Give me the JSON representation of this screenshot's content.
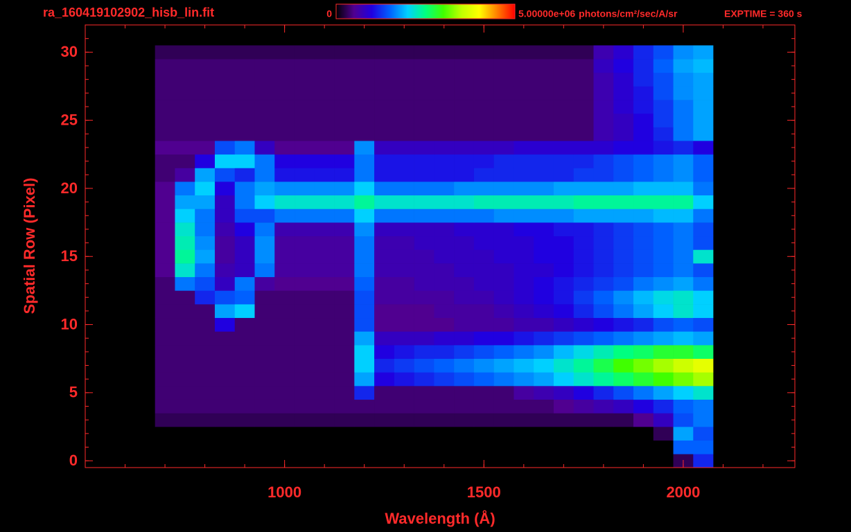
{
  "chart_data": {
    "type": "heatmap",
    "title": "ra_160419102902_hisb_lin.fit",
    "annotation": "EXPTIME = 360 s",
    "xlabel": "Wavelength (Å)",
    "ylabel": "Spatial Row (Pixel)",
    "xlim": [
      500,
      2280
    ],
    "ylim": [
      -0.5,
      32
    ],
    "xticks": [
      1000,
      1500,
      2000
    ],
    "yticks": [
      0,
      5,
      10,
      15,
      20,
      25,
      30
    ],
    "xminor": [
      600,
      700,
      800,
      900,
      1000,
      1100,
      1200,
      1300,
      1400,
      1500,
      1600,
      1700,
      1800,
      1900,
      2000,
      2100,
      2200
    ],
    "yminor": [
      0,
      1,
      2,
      3,
      4,
      5,
      6,
      7,
      8,
      9,
      10,
      11,
      12,
      13,
      14,
      15,
      16,
      17,
      18,
      19,
      20,
      21,
      22,
      23,
      24,
      25,
      26,
      27,
      28,
      29,
      30,
      31,
      32
    ],
    "axis_color": "#ff2a2a",
    "colorbar_ticks": [
      0,
      {
        "value": 5000000,
        "label": "5.00000e+06"
      }
    ],
    "colorbar_unit": "photons/cm²/sec/A/sr",
    "zlim": [
      0,
      5000000
    ],
    "colormap": [
      "#000000",
      "#500090",
      "#2000e0",
      "#0060ff",
      "#00d0ff",
      "#00ff80",
      "#40ff00",
      "#c0ff00",
      "#ffff00",
      "#ff8000",
      "#ff0000"
    ],
    "xbins": [
      675,
      725,
      775,
      825,
      875,
      925,
      975,
      1025,
      1075,
      1125,
      1175,
      1225,
      1275,
      1325,
      1375,
      1425,
      1475,
      1525,
      1575,
      1625,
      1675,
      1725,
      1775,
      1825,
      1875,
      1925,
      1975,
      2025,
      2075
    ],
    "y": [
      0,
      1,
      2,
      3,
      4,
      5,
      6,
      7,
      8,
      9,
      10,
      11,
      12,
      13,
      14,
      15,
      16,
      17,
      18,
      19,
      20,
      21,
      22,
      23,
      24,
      25,
      26,
      27,
      28,
      29,
      30
    ],
    "z": [
      [
        0,
        0,
        0,
        0,
        0,
        0,
        0,
        0,
        0,
        0,
        0,
        0,
        0,
        0,
        0,
        0,
        0,
        0,
        0,
        0,
        0,
        0,
        0,
        0,
        0,
        0,
        300000.0,
        1200000.0
      ],
      [
        0,
        0,
        0,
        0,
        0,
        0,
        0,
        0,
        0,
        0,
        0,
        0,
        0,
        0,
        0,
        0,
        0,
        0,
        0,
        0,
        0,
        0,
        0,
        0,
        0,
        0,
        1500000.0,
        1500000.0
      ],
      [
        0,
        0,
        0,
        0,
        0,
        0,
        0,
        0,
        0,
        0,
        0,
        0,
        0,
        0,
        0,
        0,
        0,
        0,
        0,
        0,
        0,
        0,
        0,
        0,
        0,
        300000.0,
        1800000.0,
        1400000.0
      ],
      [
        300000.0,
        300000.0,
        300000.0,
        300000.0,
        300000.0,
        300000.0,
        300000.0,
        300000.0,
        300000.0,
        300000.0,
        300000.0,
        300000.0,
        300000.0,
        300000.0,
        300000.0,
        300000.0,
        300000.0,
        300000.0,
        300000.0,
        300000.0,
        300000.0,
        300000.0,
        300000.0,
        300000.0,
        500000.0,
        800000.0,
        1400000.0,
        1600000.0
      ],
      [
        400000.0,
        400000.0,
        400000.0,
        400000.0,
        400000.0,
        400000.0,
        400000.0,
        400000.0,
        400000.0,
        400000.0,
        400000.0,
        400000.0,
        400000.0,
        400000.0,
        400000.0,
        400000.0,
        400000.0,
        400000.0,
        400000.0,
        400000.0,
        500000.0,
        600000.0,
        700000.0,
        800000.0,
        1000000.0,
        1200000.0,
        1500000.0,
        1600000.0
      ],
      [
        400000.0,
        400000.0,
        400000.0,
        400000.0,
        400000.0,
        400000.0,
        400000.0,
        400000.0,
        400000.0,
        400000.0,
        1200000.0,
        400000.0,
        400000.0,
        400000.0,
        400000.0,
        400000.0,
        400000.0,
        400000.0,
        600000.0,
        700000.0,
        800000.0,
        1000000.0,
        1200000.0,
        1400000.0,
        1600000.0,
        1800000.0,
        2000000.0,
        2200000.0
      ],
      [
        400000.0,
        400000.0,
        400000.0,
        400000.0,
        400000.0,
        400000.0,
        400000.0,
        400000.0,
        400000.0,
        400000.0,
        1800000.0,
        1000000.0,
        1100000.0,
        1200000.0,
        1300000.0,
        1400000.0,
        1500000.0,
        1600000.0,
        1700000.0,
        1800000.0,
        2000000.0,
        2200000.0,
        2400000.0,
        2600000.0,
        2800000.0,
        3000000.0,
        3200000.0,
        3400000.0
      ],
      [
        400000.0,
        400000.0,
        400000.0,
        400000.0,
        400000.0,
        400000.0,
        400000.0,
        400000.0,
        400000.0,
        400000.0,
        2000000.0,
        1200000.0,
        1300000.0,
        1400000.0,
        1500000.0,
        1600000.0,
        1700000.0,
        1800000.0,
        1900000.0,
        2000000.0,
        2200000.0,
        2400000.0,
        2700000.0,
        3000000.0,
        3200000.0,
        3400000.0,
        3600000.0,
        3800000.0
      ],
      [
        400000.0,
        400000.0,
        400000.0,
        400000.0,
        400000.0,
        400000.0,
        400000.0,
        400000.0,
        400000.0,
        400000.0,
        2000000.0,
        1000000.0,
        1100000.0,
        1200000.0,
        1200000.0,
        1300000.0,
        1400000.0,
        1500000.0,
        1600000.0,
        1700000.0,
        1900000.0,
        2100000.0,
        2300000.0,
        2500000.0,
        2600000.0,
        2800000.0,
        2800000.0,
        2600000.0
      ],
      [
        400000.0,
        400000.0,
        400000.0,
        400000.0,
        400000.0,
        400000.0,
        400000.0,
        400000.0,
        400000.0,
        400000.0,
        1800000.0,
        800000.0,
        800000.0,
        800000.0,
        900000.0,
        900000.0,
        1000000.0,
        1000000.0,
        1100000.0,
        1200000.0,
        1300000.0,
        1400000.0,
        1500000.0,
        1600000.0,
        1700000.0,
        1800000.0,
        1900000.0,
        1800000.0
      ],
      [
        400000.0,
        400000.0,
        400000.0,
        1000000.0,
        400000.0,
        400000.0,
        400000.0,
        400000.0,
        400000.0,
        400000.0,
        1400000.0,
        500000.0,
        500000.0,
        500000.0,
        500000.0,
        600000.0,
        600000.0,
        600000.0,
        700000.0,
        700000.0,
        800000.0,
        900000.0,
        1000000.0,
        1100000.0,
        1200000.0,
        1400000.0,
        1500000.0,
        1400000.0
      ],
      [
        400000.0,
        400000.0,
        400000.0,
        1800000.0,
        2000000.0,
        400000.0,
        400000.0,
        400000.0,
        400000.0,
        400000.0,
        1400000.0,
        500000.0,
        500000.0,
        500000.0,
        600000.0,
        600000.0,
        600000.0,
        700000.0,
        800000.0,
        900000.0,
        1000000.0,
        1200000.0,
        1400000.0,
        1600000.0,
        1800000.0,
        2000000.0,
        2200000.0,
        2000000.0
      ],
      [
        400000.0,
        400000.0,
        1200000.0,
        1400000.0,
        1500000.0,
        400000.0,
        400000.0,
        400000.0,
        400000.0,
        400000.0,
        1400000.0,
        600000.0,
        600000.0,
        600000.0,
        600000.0,
        700000.0,
        700000.0,
        800000.0,
        900000.0,
        1000000.0,
        1100000.0,
        1300000.0,
        1500000.0,
        1700000.0,
        1900000.0,
        2100000.0,
        2200000.0,
        2000000.0
      ],
      [
        400000.0,
        1600000.0,
        1400000.0,
        800000.0,
        1600000.0,
        600000.0,
        500000.0,
        500000.0,
        500000.0,
        500000.0,
        1500000.0,
        600000.0,
        600000.0,
        700000.0,
        700000.0,
        700000.0,
        800000.0,
        800000.0,
        900000.0,
        1000000.0,
        1100000.0,
        1200000.0,
        1300000.0,
        1400000.0,
        1600000.0,
        1700000.0,
        1800000.0,
        1600000.0
      ],
      [
        500000.0,
        2200000.0,
        1600000.0,
        700000.0,
        800000.0,
        1600000.0,
        600000.0,
        600000.0,
        600000.0,
        600000.0,
        1600000.0,
        700000.0,
        700000.0,
        700000.0,
        700000.0,
        800000.0,
        800000.0,
        800000.0,
        900000.0,
        900000.0,
        1000000.0,
        1100000.0,
        1200000.0,
        1300000.0,
        1400000.0,
        1500000.0,
        1600000.0,
        1400000.0
      ],
      [
        500000.0,
        2400000.0,
        1800000.0,
        600000.0,
        800000.0,
        1700000.0,
        600000.0,
        600000.0,
        600000.0,
        600000.0,
        1600000.0,
        700000.0,
        700000.0,
        700000.0,
        800000.0,
        800000.0,
        800000.0,
        900000.0,
        900000.0,
        1000000.0,
        1000000.0,
        1100000.0,
        1200000.0,
        1300000.0,
        1400000.0,
        1500000.0,
        1600000.0,
        2200000.0
      ],
      [
        500000.0,
        2300000.0,
        1700000.0,
        600000.0,
        800000.0,
        1700000.0,
        600000.0,
        600000.0,
        600000.0,
        600000.0,
        1600000.0,
        700000.0,
        700000.0,
        800000.0,
        800000.0,
        800000.0,
        900000.0,
        900000.0,
        900000.0,
        1000000.0,
        1000000.0,
        1100000.0,
        1200000.0,
        1300000.0,
        1400000.0,
        1500000.0,
        1600000.0,
        1400000.0
      ],
      [
        500000.0,
        2200000.0,
        1600000.0,
        700000.0,
        1000000.0,
        1600000.0,
        700000.0,
        700000.0,
        700000.0,
        700000.0,
        1700000.0,
        800000.0,
        800000.0,
        800000.0,
        800000.0,
        900000.0,
        900000.0,
        900000.0,
        1000000.0,
        1000000.0,
        1100000.0,
        1100000.0,
        1200000.0,
        1300000.0,
        1400000.0,
        1500000.0,
        1600000.0,
        1400000.0
      ],
      [
        500000.0,
        2000000.0,
        1600000.0,
        800000.0,
        1400000.0,
        1400000.0,
        1600000.0,
        1600000.0,
        1600000.0,
        1600000.0,
        2000000.0,
        1600000.0,
        1600000.0,
        1600000.0,
        1600000.0,
        1600000.0,
        1600000.0,
        1700000.0,
        1700000.0,
        1700000.0,
        1700000.0,
        1800000.0,
        1800000.0,
        1800000.0,
        1800000.0,
        1900000.0,
        1900000.0,
        1600000.0
      ],
      [
        500000.0,
        1800000.0,
        1800000.0,
        800000.0,
        1600000.0,
        2000000.0,
        2200000.0,
        2200000.0,
        2200000.0,
        2200000.0,
        2400000.0,
        2200000.0,
        2200000.0,
        2200000.0,
        2200000.0,
        2200000.0,
        2300000.0,
        2300000.0,
        2300000.0,
        2300000.0,
        2300000.0,
        2400000.0,
        2400000.0,
        2400000.0,
        2400000.0,
        2400000.0,
        2400000.0,
        2000000.0
      ],
      [
        500000.0,
        1600000.0,
        2000000.0,
        1000000.0,
        1600000.0,
        1800000.0,
        1700000.0,
        1700000.0,
        1700000.0,
        1700000.0,
        2000000.0,
        1600000.0,
        1600000.0,
        1600000.0,
        1600000.0,
        1700000.0,
        1700000.0,
        1700000.0,
        1700000.0,
        1700000.0,
        1800000.0,
        1800000.0,
        1800000.0,
        1800000.0,
        1900000.0,
        1900000.0,
        1900000.0,
        1600000.0
      ],
      [
        400000.0,
        600000.0,
        1800000.0,
        1400000.0,
        1200000.0,
        1600000.0,
        1100000.0,
        1100000.0,
        1100000.0,
        1100000.0,
        1600000.0,
        1100000.0,
        1100000.0,
        1100000.0,
        1100000.0,
        1100000.0,
        1200000.0,
        1200000.0,
        1200000.0,
        1200000.0,
        1200000.0,
        1300000.0,
        1300000.0,
        1400000.0,
        1500000.0,
        1600000.0,
        1700000.0,
        1500000.0
      ],
      [
        400000.0,
        400000.0,
        1000000.0,
        2000000.0,
        2000000.0,
        1600000.0,
        1000000.0,
        1000000.0,
        1000000.0,
        1000000.0,
        1600000.0,
        1100000.0,
        1100000.0,
        1100000.0,
        1100000.0,
        1100000.0,
        1100000.0,
        1200000.0,
        1200000.0,
        1200000.0,
        1200000.0,
        1200000.0,
        1300000.0,
        1400000.0,
        1500000.0,
        1600000.0,
        1700000.0,
        1500000.0
      ],
      [
        500000.0,
        500000.0,
        500000.0,
        1400000.0,
        1600000.0,
        800000.0,
        500000.0,
        500000.0,
        500000.0,
        500000.0,
        1700000.0,
        800000.0,
        800000.0,
        800000.0,
        800000.0,
        800000.0,
        800000.0,
        800000.0,
        900000.0,
        900000.0,
        900000.0,
        900000.0,
        900000.0,
        1000000.0,
        1000000.0,
        1100000.0,
        1200000.0,
        1000000.0
      ],
      [
        400000.0,
        400000.0,
        400000.0,
        400000.0,
        400000.0,
        400000.0,
        400000.0,
        400000.0,
        400000.0,
        400000.0,
        400000.0,
        400000.0,
        400000.0,
        400000.0,
        400000.0,
        400000.0,
        400000.0,
        400000.0,
        400000.0,
        400000.0,
        400000.0,
        400000.0,
        700000.0,
        800000.0,
        1000000.0,
        1200000.0,
        1600000.0,
        1800000.0
      ],
      [
        400000.0,
        400000.0,
        400000.0,
        400000.0,
        400000.0,
        400000.0,
        400000.0,
        400000.0,
        400000.0,
        400000.0,
        400000.0,
        400000.0,
        400000.0,
        400000.0,
        400000.0,
        400000.0,
        400000.0,
        400000.0,
        400000.0,
        400000.0,
        400000.0,
        400000.0,
        700000.0,
        800000.0,
        1000000.0,
        1300000.0,
        1600000.0,
        1800000.0
      ],
      [
        400000.0,
        400000.0,
        400000.0,
        400000.0,
        400000.0,
        400000.0,
        400000.0,
        400000.0,
        400000.0,
        400000.0,
        400000.0,
        400000.0,
        400000.0,
        400000.0,
        400000.0,
        400000.0,
        400000.0,
        400000.0,
        400000.0,
        400000.0,
        400000.0,
        400000.0,
        700000.0,
        900000.0,
        1100000.0,
        1300000.0,
        1600000.0,
        1800000.0
      ],
      [
        400000.0,
        400000.0,
        400000.0,
        400000.0,
        400000.0,
        400000.0,
        400000.0,
        400000.0,
        400000.0,
        400000.0,
        400000.0,
        400000.0,
        400000.0,
        400000.0,
        400000.0,
        400000.0,
        400000.0,
        400000.0,
        400000.0,
        400000.0,
        400000.0,
        400000.0,
        700000.0,
        900000.0,
        1100000.0,
        1400000.0,
        1700000.0,
        1800000.0
      ],
      [
        400000.0,
        400000.0,
        400000.0,
        400000.0,
        400000.0,
        400000.0,
        400000.0,
        400000.0,
        400000.0,
        400000.0,
        400000.0,
        400000.0,
        400000.0,
        400000.0,
        400000.0,
        400000.0,
        400000.0,
        400000.0,
        400000.0,
        400000.0,
        400000.0,
        400000.0,
        700000.0,
        900000.0,
        1200000.0,
        1400000.0,
        1700000.0,
        1800000.0
      ],
      [
        400000.0,
        400000.0,
        400000.0,
        400000.0,
        400000.0,
        400000.0,
        400000.0,
        400000.0,
        400000.0,
        400000.0,
        400000.0,
        400000.0,
        400000.0,
        400000.0,
        400000.0,
        400000.0,
        400000.0,
        400000.0,
        400000.0,
        400000.0,
        400000.0,
        400000.0,
        800000.0,
        1000000.0,
        1200000.0,
        1500000.0,
        1800000.0,
        1900000.0
      ],
      [
        300000.0,
        300000.0,
        300000.0,
        300000.0,
        300000.0,
        300000.0,
        300000.0,
        300000.0,
        300000.0,
        300000.0,
        300000.0,
        300000.0,
        300000.0,
        300000.0,
        300000.0,
        300000.0,
        300000.0,
        300000.0,
        300000.0,
        300000.0,
        300000.0,
        300000.0,
        700000.0,
        900000.0,
        1200000.0,
        1400000.0,
        1700000.0,
        1800000.0
      ]
    ]
  }
}
